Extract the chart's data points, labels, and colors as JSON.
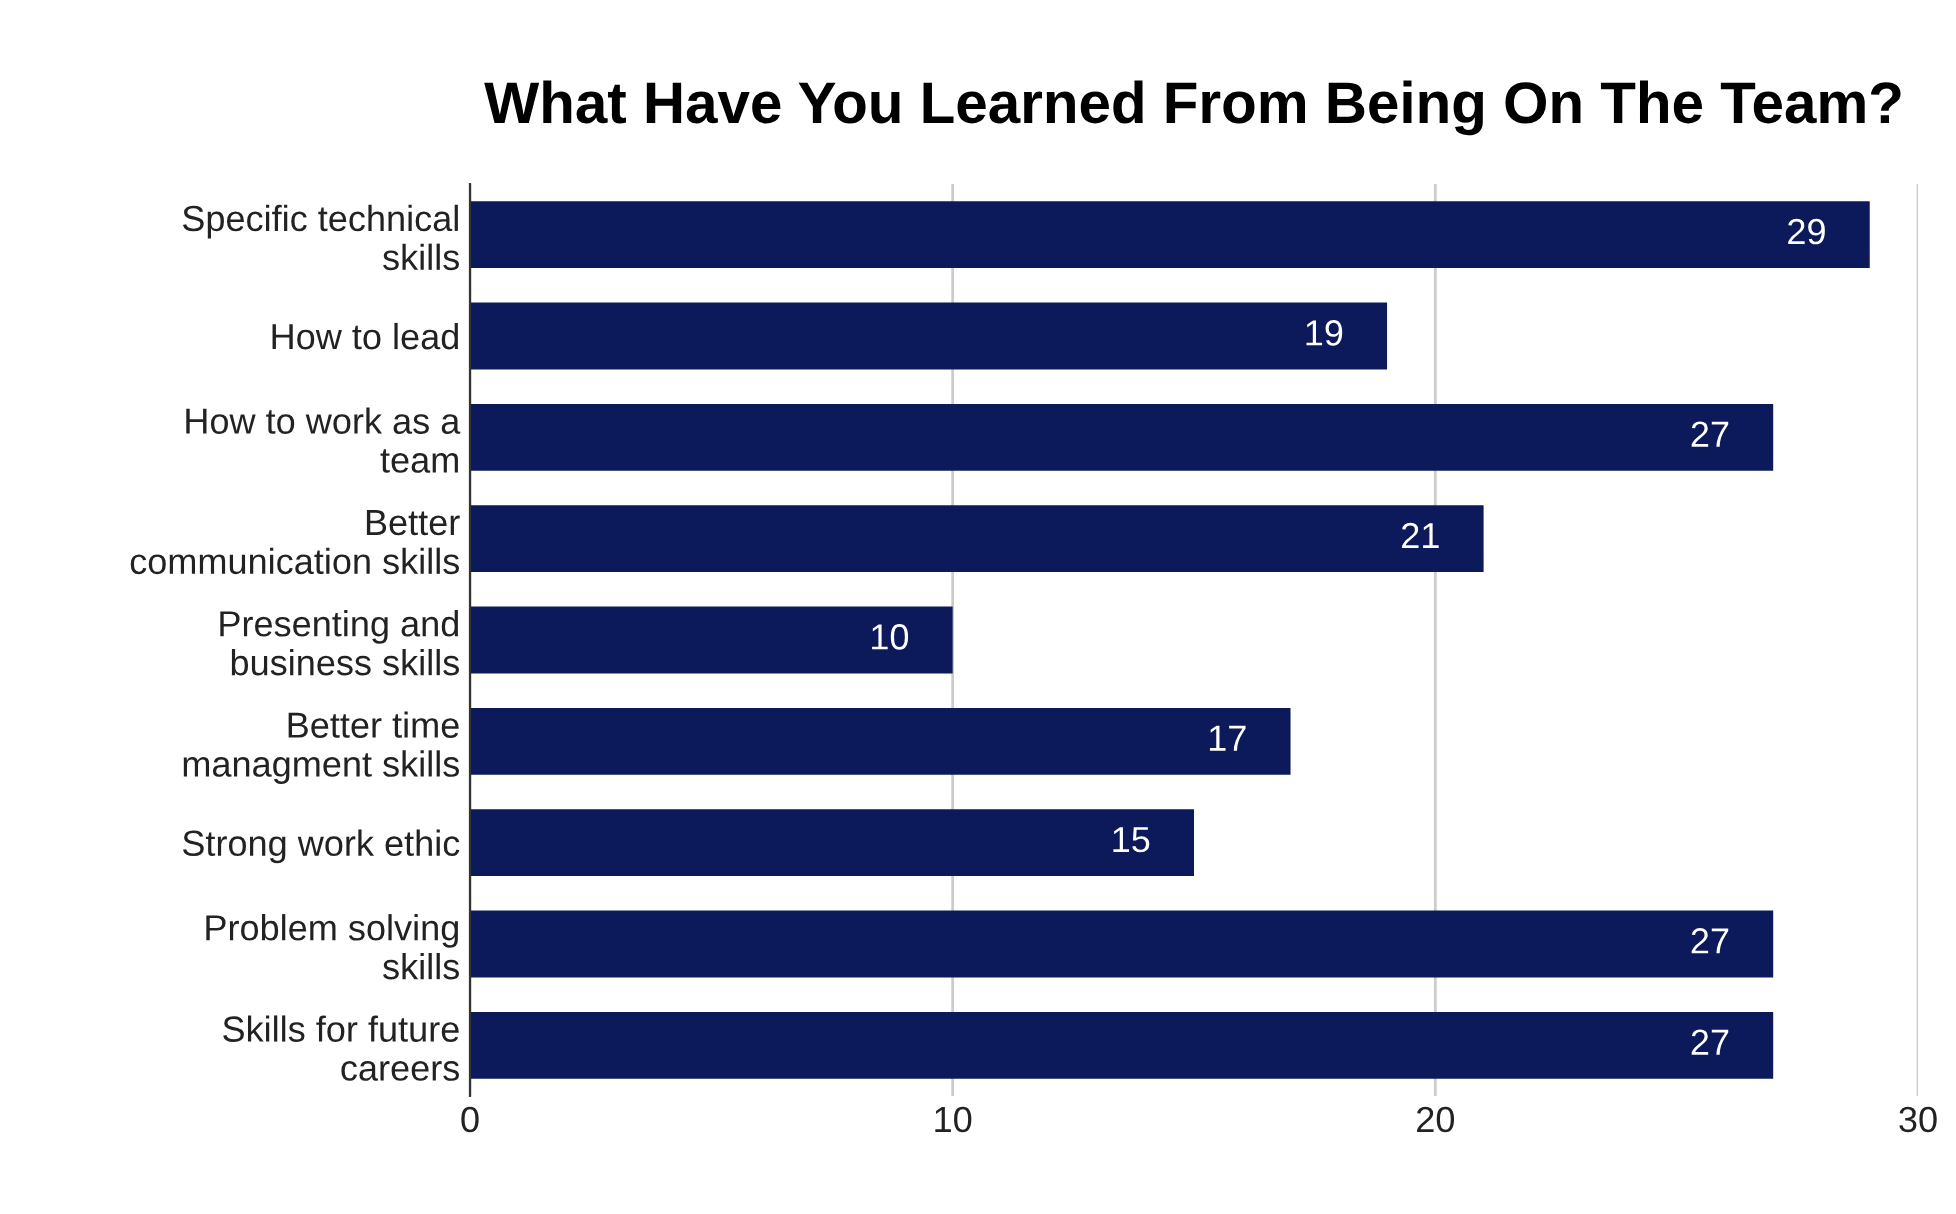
{
  "chart_data": {
    "type": "bar",
    "orientation": "horizontal",
    "title": "What Have You Learned From Being On The Team?",
    "categories": [
      "Specific technical\nskills",
      "How to lead",
      "How to work as a\nteam",
      "Better\ncommunication skills",
      "Presenting and\nbusiness skills",
      "Better time\nmanagment skills",
      "Strong work ethic",
      "Problem solving\nskills",
      "Skills for future\ncareers"
    ],
    "values": [
      29,
      19,
      27,
      21,
      10,
      17,
      15,
      27,
      27
    ],
    "color": "#0c1a5b",
    "xlim": [
      0,
      30
    ],
    "xticks": [
      0,
      10,
      20,
      30
    ],
    "grid": "x",
    "data_labels": true,
    "legend": false
  }
}
